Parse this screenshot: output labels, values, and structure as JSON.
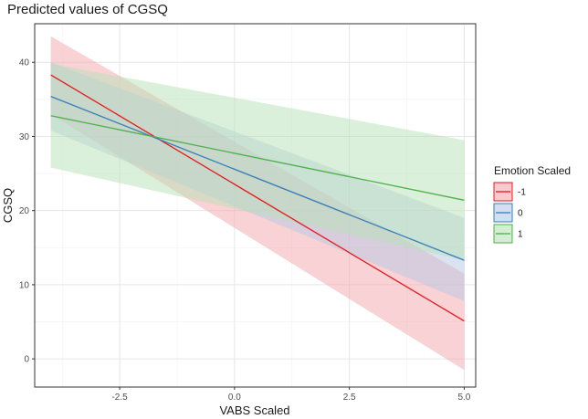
{
  "chart_data": {
    "type": "line",
    "title": "Predicted values of CGSQ",
    "xlabel": "VABS Scaled",
    "ylabel": "CGSQ",
    "xlim": [
      -4.35,
      5.25
    ],
    "ylim": [
      -3.8,
      45.2
    ],
    "x_ticks": [
      -2.5,
      0.0,
      2.5,
      5.0
    ],
    "x_tick_labels": [
      "-2.5",
      "0.0",
      "2.5",
      "5.0"
    ],
    "y_ticks": [
      0,
      10,
      20,
      30,
      40
    ],
    "y_tick_labels": [
      "0",
      "10",
      "20",
      "30",
      "40"
    ],
    "grid": true,
    "legend": {
      "title": "Emotion Scaled",
      "position": "right"
    },
    "x": [
      -4.0,
      5.0
    ],
    "series": [
      {
        "name": "-1",
        "color": "#E41A1C",
        "fill": "#F4A6AB",
        "values": [
          38.3,
          5.1
        ],
        "lower": [
          33.0,
          -1.5
        ],
        "upper": [
          43.5,
          11.5
        ]
      },
      {
        "name": "0",
        "color": "#377EB8",
        "fill": "#B5C8E6",
        "values": [
          35.4,
          13.3
        ],
        "lower": [
          30.8,
          7.8
        ],
        "upper": [
          40.0,
          19.0
        ]
      },
      {
        "name": "1",
        "color": "#4DAF4A",
        "fill": "#B8E2B6",
        "values": [
          32.8,
          21.4
        ],
        "lower": [
          25.8,
          13.3
        ],
        "upper": [
          39.8,
          29.5
        ]
      }
    ]
  }
}
